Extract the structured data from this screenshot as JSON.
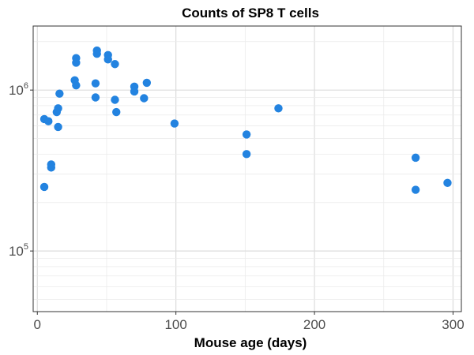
{
  "chart_data": {
    "type": "scatter",
    "title": "Counts of SP8 T cells",
    "xlabel": "Mouse age (days)",
    "ylabel": "",
    "xlim": [
      -3,
      306
    ],
    "ylim": [
      42000,
      2500000
    ],
    "y_scale": "log",
    "grid": true,
    "x_ticks": [
      0,
      100,
      200,
      300
    ],
    "y_ticks": [
      {
        "value": 100000,
        "base": "10",
        "exp": "5"
      },
      {
        "value": 1000000,
        "base": "10",
        "exp": "6"
      }
    ],
    "point_color": "#2383e0",
    "points": [
      {
        "x": 5,
        "y": 660000
      },
      {
        "x": 8,
        "y": 640000
      },
      {
        "x": 5,
        "y": 250000
      },
      {
        "x": 10,
        "y": 345000
      },
      {
        "x": 10,
        "y": 330000
      },
      {
        "x": 14,
        "y": 730000
      },
      {
        "x": 15,
        "y": 770000
      },
      {
        "x": 15,
        "y": 590000
      },
      {
        "x": 16,
        "y": 950000
      },
      {
        "x": 27,
        "y": 1150000
      },
      {
        "x": 28,
        "y": 1580000
      },
      {
        "x": 28,
        "y": 1480000
      },
      {
        "x": 28,
        "y": 1070000
      },
      {
        "x": 42,
        "y": 1100000
      },
      {
        "x": 42,
        "y": 900000
      },
      {
        "x": 43,
        "y": 1760000
      },
      {
        "x": 43,
        "y": 1680000
      },
      {
        "x": 51,
        "y": 1650000
      },
      {
        "x": 51,
        "y": 1550000
      },
      {
        "x": 56,
        "y": 1450000
      },
      {
        "x": 56,
        "y": 870000
      },
      {
        "x": 57,
        "y": 730000
      },
      {
        "x": 70,
        "y": 1050000
      },
      {
        "x": 70,
        "y": 980000
      },
      {
        "x": 77,
        "y": 890000
      },
      {
        "x": 79,
        "y": 1110000
      },
      {
        "x": 99,
        "y": 620000
      },
      {
        "x": 151,
        "y": 530000
      },
      {
        "x": 151,
        "y": 400000
      },
      {
        "x": 174,
        "y": 770000
      },
      {
        "x": 273,
        "y": 380000
      },
      {
        "x": 273,
        "y": 240000
      },
      {
        "x": 296,
        "y": 265000
      }
    ]
  }
}
